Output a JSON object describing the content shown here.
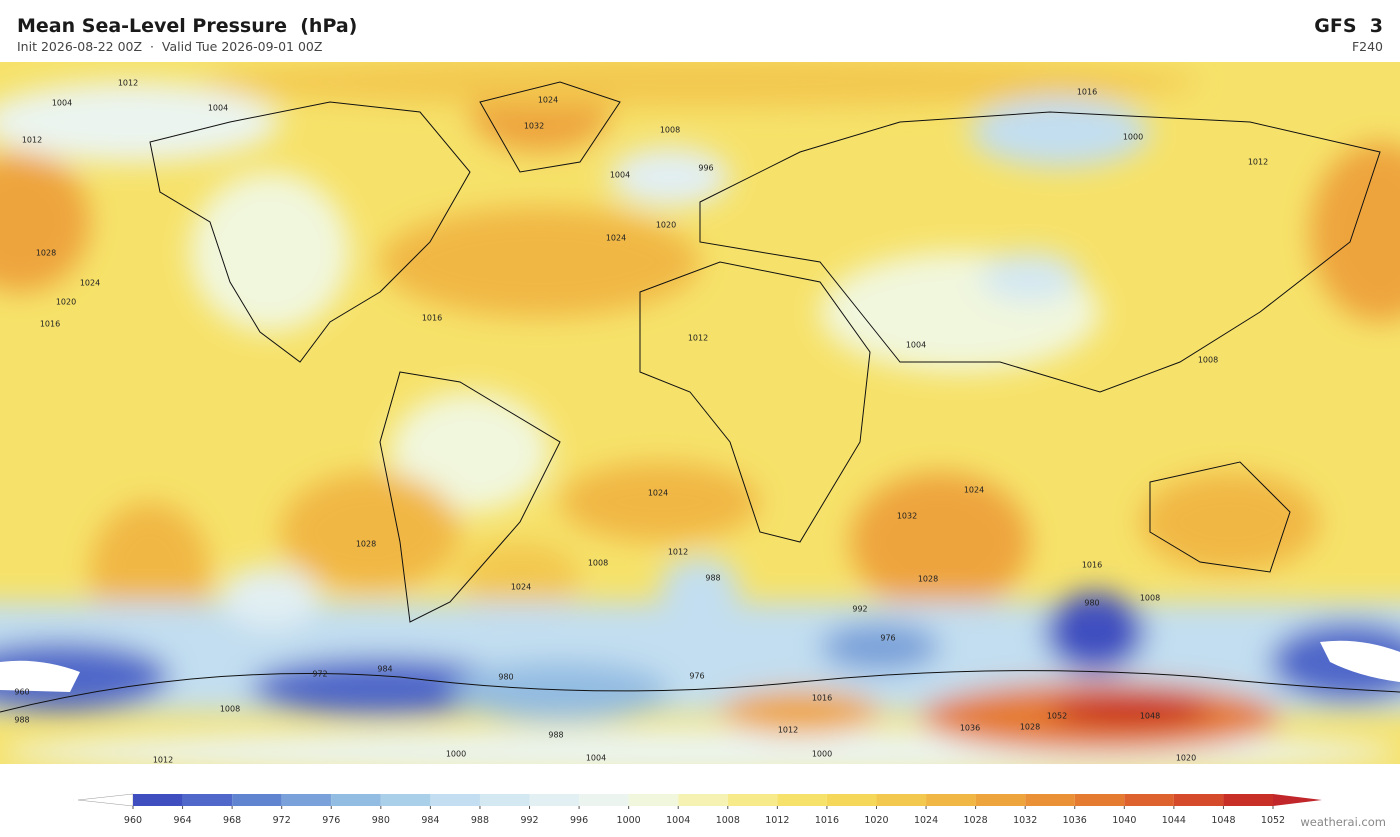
{
  "header": {
    "title": "Mean Sea-Level Pressure  (hPa)",
    "subtitle": "Init 2026-08-22 00Z  ·  Valid Tue 2026-09-01 00Z",
    "model": "GFS  3",
    "step": "F240"
  },
  "contour_labels": [
    1012,
    1004,
    1004,
    1012,
    1024,
    1032,
    1008,
    996,
    1004,
    1000,
    1016,
    1012,
    1024,
    1020,
    1028,
    1024,
    1020,
    1016,
    1016,
    1012,
    1004,
    1008,
    1024,
    1024,
    1032,
    1028,
    1024,
    1012,
    1008,
    1028,
    1016,
    1008,
    988,
    992,
    980,
    976,
    972,
    984,
    980,
    976,
    960,
    988,
    1008,
    1052,
    1048,
    1036,
    1028,
    1016,
    1012,
    1000,
    1004,
    1000,
    1012,
    988,
    1020
  ],
  "colorbar": {
    "ticks": [
      960,
      964,
      968,
      972,
      976,
      980,
      984,
      988,
      992,
      996,
      1000,
      1004,
      1008,
      1012,
      1016,
      1020,
      1024,
      1028,
      1032,
      1036,
      1040,
      1044,
      1048,
      1052
    ],
    "colors": [
      "#3f4fc0",
      "#5068c9",
      "#6184d0",
      "#7aa1d9",
      "#93bce2",
      "#aacfe9",
      "#c2def0",
      "#d4e8f2",
      "#e2eff3",
      "#ebf4ef",
      "#f1f7dd",
      "#f5f2b4",
      "#f6ea8a",
      "#f6e26a",
      "#f5d75a",
      "#f3c84f",
      "#f1b744",
      "#eea43c",
      "#ea9036",
      "#e57a31",
      "#de622d",
      "#d54a2a",
      "#c83027"
    ],
    "under_color": "#ffffff",
    "over_color": "#c0262a"
  },
  "credit": "weatherai.com"
}
